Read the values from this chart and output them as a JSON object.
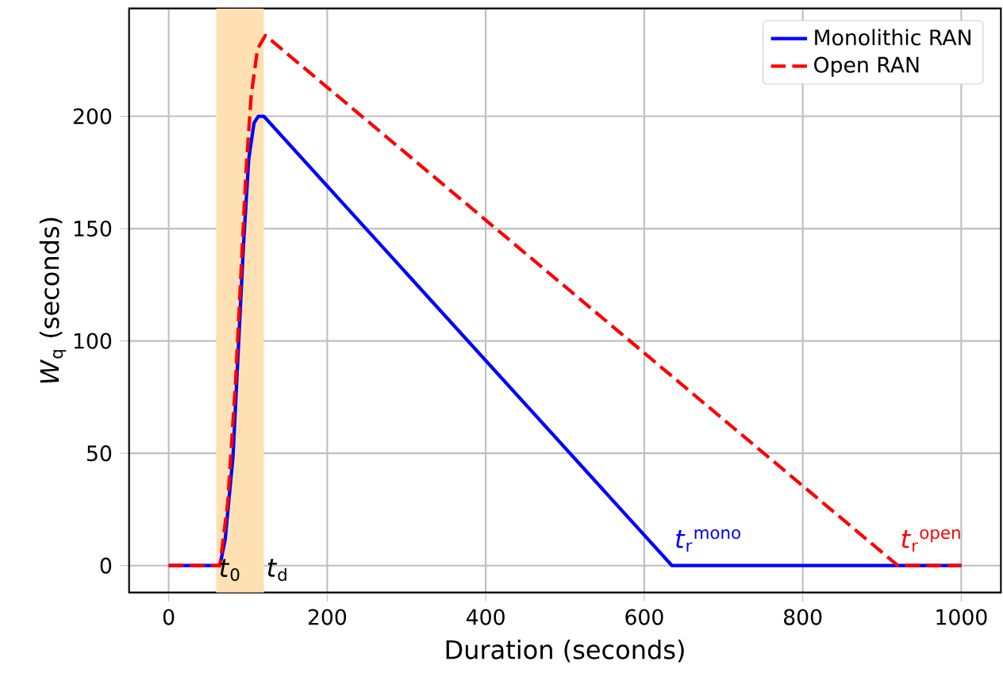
{
  "chart_data": {
    "type": "line",
    "xlabel": "Duration (seconds)",
    "ylabel": "*W*$_{q}$ (seconds)",
    "xlim": [
      -50,
      1050
    ],
    "ylim": [
      -12,
      248
    ],
    "xticks": [
      0,
      200,
      400,
      600,
      800,
      1000
    ],
    "yticks": [
      0,
      50,
      100,
      150,
      200
    ],
    "grid": true,
    "legend": "top right",
    "series": [
      {
        "name": "Monolithic RAN",
        "color": "#0000ff",
        "line_style": "solid",
        "x": [
          0,
          60,
          64.6,
          71.3,
          81.2,
          87.8,
          94.4,
          101,
          107.6,
          113,
          120,
          635,
          1000
        ],
        "values": [
          0,
          0,
          0,
          11.7,
          49,
          96,
          143,
          181,
          197,
          200,
          200,
          0,
          0
        ]
      },
      {
        "name": "Open RAN",
        "color": "#ff0000",
        "line_style": "dashed",
        "x": [
          0,
          60,
          64.6,
          74.5,
          84.4,
          91,
          97.6,
          104,
          112,
          122,
          920,
          1000
        ],
        "values": [
          0,
          0,
          0,
          28,
          82,
          129,
          176,
          209,
          230,
          236,
          0,
          0
        ]
      }
    ],
    "bands": [
      {
        "axis": "x",
        "from": 60,
        "to": 120,
        "color": "#fee0b3"
      }
    ],
    "annotations": [
      {
        "text": "*t*$_{0}$",
        "x": 60,
        "y": -8
      },
      {
        "text": "*t*$_{d}$",
        "x": 120,
        "y": -8
      },
      {
        "text": "*t*$_{r}$$^{mono}$",
        "x": 635,
        "y": 5
      },
      {
        "text": "*t*$_{r}$$^{open}$",
        "x": 920,
        "y": 5
      }
    ]
  }
}
